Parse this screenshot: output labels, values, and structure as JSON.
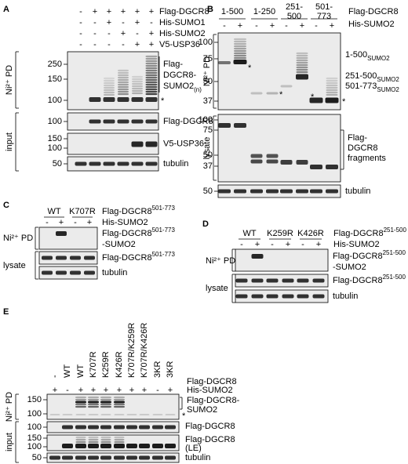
{
  "A": {
    "label": "A",
    "rows": [
      {
        "name": "Flag-DGCR8",
        "signs": [
          "-",
          "+",
          "+",
          "+",
          "+",
          "+"
        ]
      },
      {
        "name": "His-SUMO1",
        "signs": [
          "-",
          "-",
          "+",
          "-",
          "+",
          "-"
        ]
      },
      {
        "name": "His-SUMO2",
        "signs": [
          "-",
          "-",
          "-",
          "+",
          "-",
          "+"
        ]
      },
      {
        "name": "V5-USP36",
        "signs": [
          "-",
          "-",
          "-",
          "-",
          "+",
          "+"
        ]
      }
    ],
    "pd": {
      "section": "Ni²⁺ PD",
      "markers": [
        250,
        150,
        100
      ],
      "product": [
        "Flag-",
        "DGCR8-",
        "SUMO2",
        "(n)"
      ],
      "star": "*"
    },
    "input": {
      "section": "input",
      "blots": [
        {
          "markers": [
            100
          ],
          "label": "Flag-DGCR8"
        },
        {
          "markers": [
            150,
            100
          ],
          "label": "V5-USP36"
        },
        {
          "markers": [
            50
          ],
          "label": "tubulin"
        }
      ]
    }
  },
  "B": {
    "label": "B",
    "constructs": [
      [
        "1-500"
      ],
      [
        "1-250"
      ],
      [
        "251-",
        "500"
      ],
      [
        "501-",
        "773"
      ]
    ],
    "construct_row": "Flag-DGCR8",
    "his": {
      "name": "His-SUMO2",
      "signs": [
        "-",
        "+",
        "-",
        "+",
        "-",
        "+",
        "-",
        "+"
      ]
    },
    "pd": {
      "section": "Ni²⁺ PD",
      "markers": [
        100,
        75,
        50,
        37
      ],
      "products": [
        [
          "1-500",
          "SUMO2"
        ],
        [
          "251-500",
          "SUMO2"
        ],
        [
          "501-773",
          "SUMO2"
        ]
      ],
      "star": "*"
    },
    "lysate": {
      "section": "lysate",
      "markers": [
        100,
        75,
        50,
        37
      ],
      "label": [
        "Flag-",
        "DGCR8",
        "fragments"
      ]
    },
    "tubulin": {
      "markers": [
        50
      ],
      "label": "tubulin"
    }
  },
  "C": {
    "label": "C",
    "constructs": [
      "WT",
      "K707R"
    ],
    "construct_row": [
      "Flag-DGCR8",
      "501-773"
    ],
    "his": {
      "name": "His-SUMO2",
      "signs": [
        "-",
        "+",
        "-",
        "+"
      ]
    },
    "pd": {
      "section": "Ni²⁺ PD",
      "label": [
        "Flag-DGCR8",
        "501-773",
        "-SUMO2"
      ]
    },
    "lysate": {
      "section": "lysate",
      "blots": [
        [
          "Flag-DGCR8",
          "501-773"
        ],
        [
          "tubulin"
        ]
      ]
    }
  },
  "D": {
    "label": "D",
    "constructs": [
      "WT",
      "K259R",
      "K426R"
    ],
    "construct_row": [
      "Flag-DGCR8",
      "251-500"
    ],
    "his": {
      "name": "His-SUMO2",
      "signs": [
        "-",
        "+",
        "-",
        "+",
        "-",
        "+"
      ]
    },
    "pd": {
      "section": "Ni²⁺ PD",
      "label": [
        "Flag-DGCR8",
        "251-500",
        "-SUMO2"
      ]
    },
    "lysate": {
      "section": "lysate",
      "blots": [
        [
          "Flag-DGCR8",
          "251-500"
        ],
        [
          "tubulin"
        ]
      ]
    }
  },
  "E": {
    "label": "E",
    "constructs": [
      "-",
      "WT",
      "WT",
      "K707R",
      "K259R",
      "K426R",
      "K707R/K259R",
      "K707R/K426R",
      "3KR",
      "3KR"
    ],
    "construct_row": "Flag-DGCR8",
    "his": {
      "name": "His-SUMO2",
      "signs": [
        "+",
        "-",
        "+",
        "+",
        "+",
        "+",
        "+",
        "+",
        "-",
        "+"
      ]
    },
    "pd": {
      "section": "Ni²⁺ PD",
      "markers": [
        150,
        100
      ],
      "product": [
        "Flag-DGCR8-",
        "SUMO2"
      ],
      "star": "*"
    },
    "input": {
      "section": "input",
      "blots": [
        {
          "markers": [
            100
          ],
          "label": [
            "Flag-DGCR8"
          ]
        },
        {
          "markers": [
            150,
            100
          ],
          "label": [
            "Flag-DGCR8",
            "(LE)"
          ]
        },
        {
          "markers": [
            50
          ],
          "label": [
            "tubulin"
          ]
        }
      ]
    }
  }
}
